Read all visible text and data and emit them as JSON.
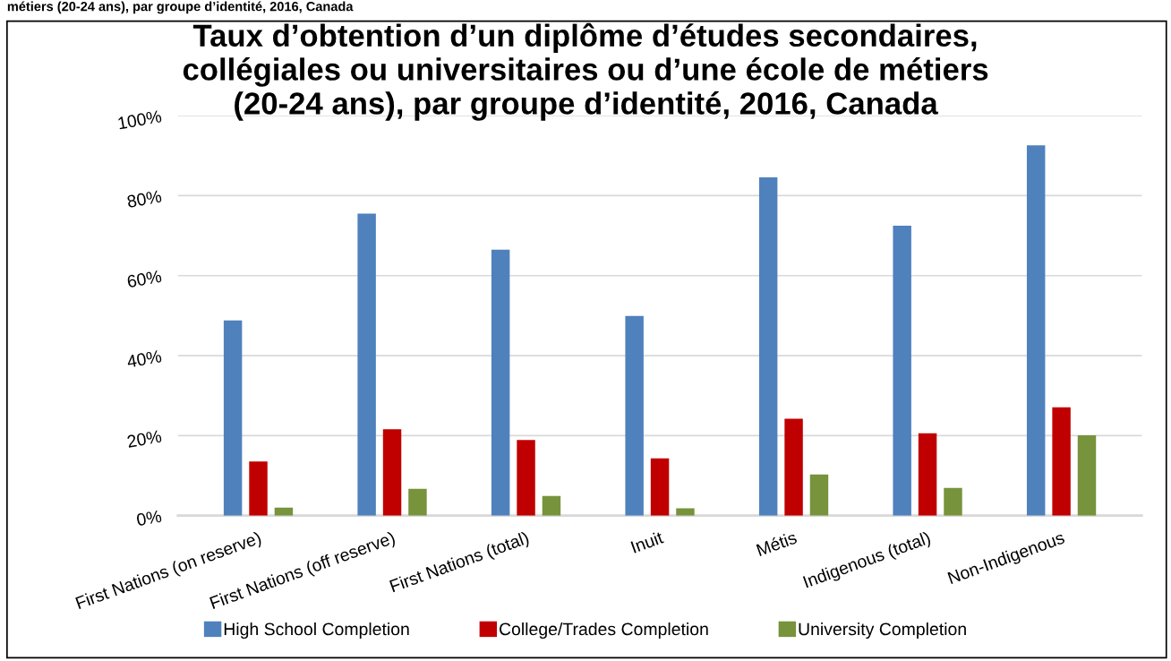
{
  "chart_data": {
    "type": "bar",
    "title": "Taux d’obtention d’un diplôme d’études secondaires,\ncollégiales ou universitaires ou d’une école de métiers\n(20-24 ans), par groupe d’identité, 2016, Canada",
    "annotations": [
      "métiers (20-24 ans), par groupe d’identité, 2016, Canada"
    ],
    "categories": [
      "First Nations (on reserve)",
      "First Nations (off reserve)",
      "First Nations (total)",
      "Inuit",
      "Métis",
      "Indigenous (total)",
      "Non-Indigenous"
    ],
    "series": [
      {
        "name": "High School Completion",
        "color": "#4f81bd",
        "values": [
          48.8,
          75.5,
          66.5,
          49.9,
          84.6,
          72.5,
          92.6
        ]
      },
      {
        "name": "College/Trades Completion",
        "color": "#c00000",
        "values": [
          13.5,
          21.6,
          18.9,
          14.3,
          24.2,
          20.6,
          27.1
        ]
      },
      {
        "name": "University Completion",
        "color": "#77933c",
        "values": [
          2,
          6.7,
          4.9,
          1.8,
          10.3,
          6.9,
          20.1
        ]
      }
    ],
    "ylim": [
      0,
      100
    ],
    "yticks": [
      {
        "value": 0,
        "label": "0%"
      },
      {
        "value": 20,
        "label": "20%"
      },
      {
        "value": 40,
        "label": "40%"
      },
      {
        "value": 60,
        "label": "60%"
      },
      {
        "value": 80,
        "label": "80%"
      },
      {
        "value": 100,
        "label": "100%"
      }
    ],
    "grid": "y",
    "legend": "bottom"
  }
}
